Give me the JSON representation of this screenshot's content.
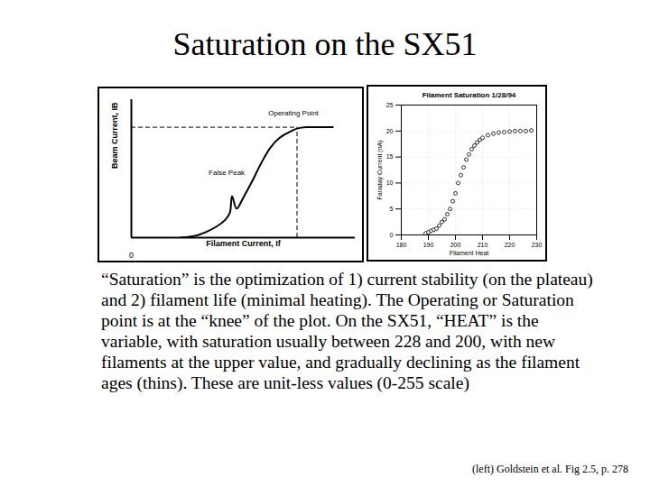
{
  "title": "Saturation on the SX51",
  "text": "“Saturation” is the optimization of 1) current stability (on the plateau) and 2) filament life (minimal heating). The Operating or Saturation point is at the “knee” of the plot. On the SX51, “HEAT” is the variable, with saturation usually between 228 and 200, with new filaments at the upper value, and gradually declining as the filament ages (thins). These are unit-less values (0-255 scale)",
  "credit": "(left) Goldstein et al. Fig 2.5, p. 278",
  "chart_data": [
    {
      "type": "line",
      "x_label": "Filament Current, If",
      "y_label": "Beam Current, IB",
      "x": [
        22,
        30,
        38,
        42,
        44,
        45,
        47,
        50,
        54,
        58,
        62,
        66,
        70,
        74,
        78,
        86,
        90
      ],
      "values": [
        0,
        2,
        8,
        13,
        18,
        30,
        21,
        29,
        41,
        54,
        65,
        72,
        76,
        79,
        80,
        80,
        80
      ],
      "color": "#000000",
      "xlim": [
        0,
        100
      ],
      "ylim": [
        0,
        100
      ],
      "xticks": [
        0
      ],
      "yticks": [],
      "tick_labels": "x",
      "operating_point": {
        "x": 74,
        "y": 80,
        "label": "Operating Point"
      },
      "annotations": [
        {
          "text": "False Peak",
          "x": 45,
          "y": 30
        }
      ]
    },
    {
      "type": "scatter",
      "title": "Filament Saturation 1/28/94",
      "x_label": "Filament Heat",
      "y_label": "Faraday Current (nA)",
      "x": [
        189,
        190,
        191,
        192,
        193,
        194,
        195,
        196,
        197,
        198,
        199,
        200,
        201,
        202,
        203,
        204,
        205,
        206,
        207,
        208,
        209,
        210,
        212,
        214,
        216,
        218,
        220,
        222,
        224,
        226,
        228
      ],
      "values": [
        0.3,
        0.5,
        0.8,
        1,
        1.2,
        1.8,
        2.5,
        3,
        4,
        5,
        6.5,
        8,
        10,
        11.5,
        13,
        14.5,
        15.5,
        16.5,
        17.2,
        17.8,
        18.3,
        18.7,
        19.2,
        19.5,
        19.7,
        19.8,
        19.9,
        20,
        20,
        20,
        20.1
      ],
      "color": "#000000",
      "marker": "circle",
      "xlim": [
        180,
        230
      ],
      "ylim": [
        0,
        25
      ],
      "xticks": [
        180,
        190,
        200,
        210,
        220,
        230
      ],
      "yticks": [
        0,
        5,
        10,
        15,
        20,
        25
      ],
      "grid": true
    }
  ]
}
